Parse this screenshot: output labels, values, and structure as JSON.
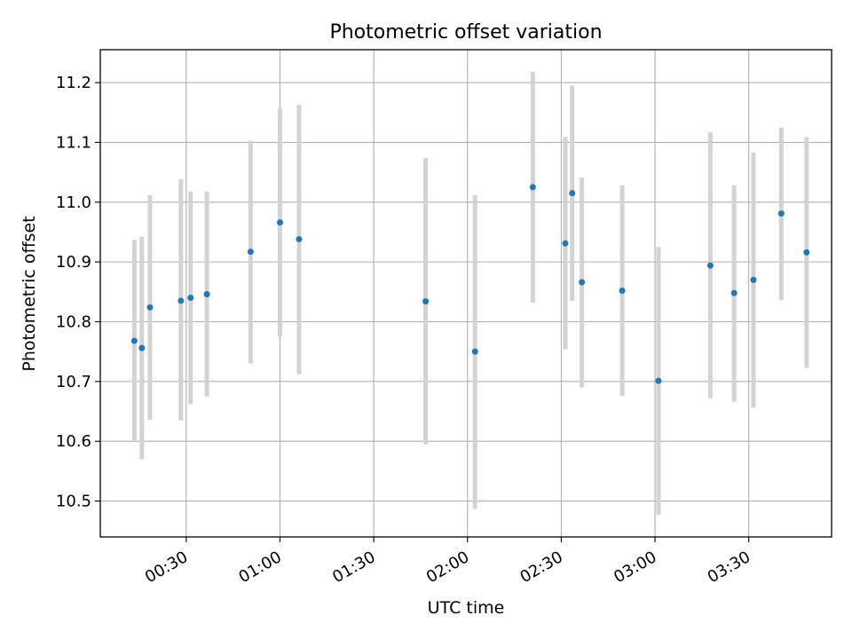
{
  "chart_data": {
    "type": "scatter",
    "title": "Photometric offset variation",
    "xlabel": "UTC time",
    "ylabel": "Photometric offset",
    "x_tick_labels": [
      "00:30",
      "01:00",
      "01:30",
      "02:00",
      "02:30",
      "03:00",
      "03:30"
    ],
    "y_tick_labels": [
      "10.5",
      "10.6",
      "10.7",
      "10.8",
      "10.9",
      "11.0",
      "11.1",
      "11.2"
    ],
    "x_ticks_minutes": [
      30,
      60,
      90,
      120,
      150,
      180,
      210
    ],
    "y_ticks": [
      10.5,
      10.6,
      10.7,
      10.8,
      10.9,
      11.0,
      11.1,
      11.2
    ],
    "xlim_minutes": [
      2.5,
      236.5
    ],
    "ylim": [
      10.44,
      11.255
    ],
    "grid": true,
    "marker_color": "#1f77b4",
    "errorbar_color": "#d3d3d3",
    "points": [
      {
        "time": "00:13",
        "minutes": 13.4,
        "y": 10.768,
        "ylow": 10.6,
        "yhigh": 10.937
      },
      {
        "time": "00:16",
        "minutes": 15.8,
        "y": 10.756,
        "ylow": 10.57,
        "yhigh": 10.942
      },
      {
        "time": "00:18",
        "minutes": 18.4,
        "y": 10.824,
        "ylow": 10.636,
        "yhigh": 11.012
      },
      {
        "time": "00:29",
        "minutes": 28.3,
        "y": 10.835,
        "ylow": 10.635,
        "yhigh": 11.038
      },
      {
        "time": "00:31",
        "minutes": 31.4,
        "y": 10.84,
        "ylow": 10.662,
        "yhigh": 11.018
      },
      {
        "time": "00:37",
        "minutes": 36.6,
        "y": 10.846,
        "ylow": 10.675,
        "yhigh": 11.018
      },
      {
        "time": "00:51",
        "minutes": 50.6,
        "y": 10.917,
        "ylow": 10.73,
        "yhigh": 11.103
      },
      {
        "time": "01:00",
        "minutes": 60.0,
        "y": 10.966,
        "ylow": 10.775,
        "yhigh": 11.157
      },
      {
        "time": "01:06",
        "minutes": 66.1,
        "y": 10.938,
        "ylow": 10.712,
        "yhigh": 11.163
      },
      {
        "time": "01:47",
        "minutes": 106.6,
        "y": 10.834,
        "ylow": 10.595,
        "yhigh": 11.074
      },
      {
        "time": "02:02",
        "minutes": 122.4,
        "y": 10.75,
        "ylow": 10.487,
        "yhigh": 11.012
      },
      {
        "time": "02:21",
        "minutes": 140.9,
        "y": 11.025,
        "ylow": 10.832,
        "yhigh": 11.218
      },
      {
        "time": "02:31",
        "minutes": 151.3,
        "y": 10.931,
        "ylow": 10.754,
        "yhigh": 11.109
      },
      {
        "time": "02:34",
        "minutes": 153.5,
        "y": 11.015,
        "ylow": 10.835,
        "yhigh": 11.195
      },
      {
        "time": "02:37",
        "minutes": 156.6,
        "y": 10.866,
        "ylow": 10.69,
        "yhigh": 11.041
      },
      {
        "time": "02:50",
        "minutes": 169.5,
        "y": 10.852,
        "ylow": 10.676,
        "yhigh": 11.028
      },
      {
        "time": "03:01",
        "minutes": 181.1,
        "y": 10.701,
        "ylow": 10.477,
        "yhigh": 10.925
      },
      {
        "time": "03:18",
        "minutes": 197.7,
        "y": 10.894,
        "ylow": 10.672,
        "yhigh": 11.117
      },
      {
        "time": "03:25",
        "minutes": 205.3,
        "y": 10.848,
        "ylow": 10.666,
        "yhigh": 11.028
      },
      {
        "time": "03:31",
        "minutes": 211.5,
        "y": 10.87,
        "ylow": 10.656,
        "yhigh": 11.083
      },
      {
        "time": "03:40",
        "minutes": 220.4,
        "y": 10.981,
        "ylow": 10.836,
        "yhigh": 11.125
      },
      {
        "time": "03:48",
        "minutes": 228.5,
        "y": 10.916,
        "ylow": 10.723,
        "yhigh": 11.109
      }
    ]
  }
}
